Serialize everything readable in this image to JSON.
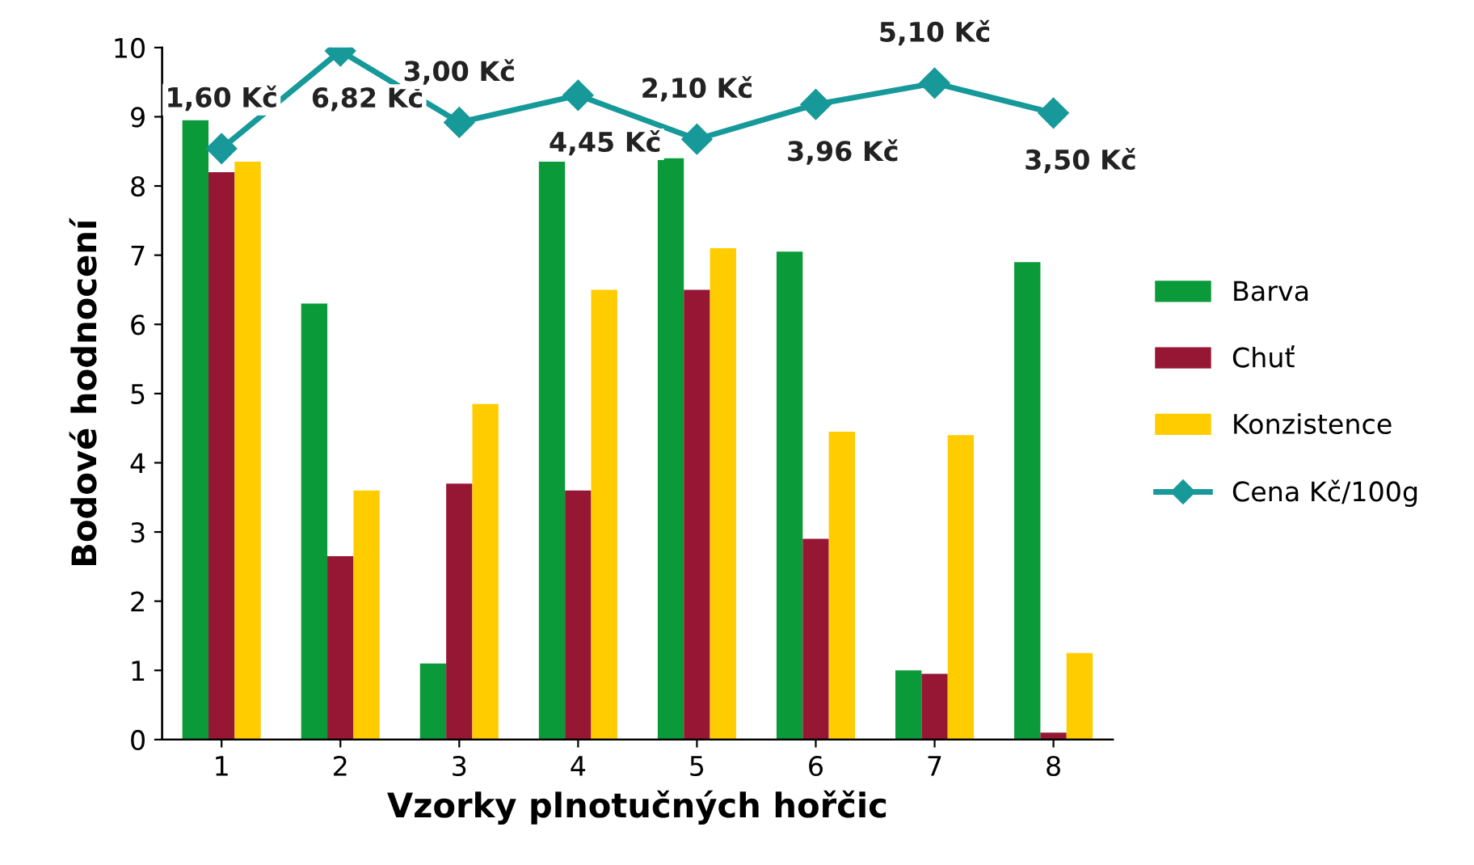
{
  "chart_data": {
    "type": "bar",
    "xlabel": "Vzorky plnotučných hořčic",
    "ylabel": "Bodové hodnocení",
    "categories": [
      "1",
      "2",
      "3",
      "4",
      "5",
      "6",
      "7",
      "8"
    ],
    "ylim": [
      0,
      10
    ],
    "yticks": [
      0,
      1,
      2,
      3,
      4,
      5,
      6,
      7,
      8,
      9,
      10
    ],
    "y2lim": [
      -30,
      7
    ],
    "grid": false,
    "legend": "right",
    "marker": "diamond",
    "line_style": "solid",
    "series": [
      {
        "name": "Barva",
        "color": "#0a9a3a",
        "values": [
          8.95,
          6.3,
          1.1,
          8.35,
          8.4,
          7.05,
          1.0,
          6.9
        ]
      },
      {
        "name": "Chuť",
        "color": "#961734",
        "values": [
          8.2,
          2.65,
          3.7,
          3.6,
          6.5,
          2.9,
          0.95,
          0.1
        ]
      },
      {
        "name": "Konzistence",
        "color": "#ffcc00",
        "values": [
          8.35,
          3.6,
          4.85,
          6.5,
          7.1,
          4.45,
          4.4,
          1.25
        ]
      },
      {
        "name": "Cena Kč/100g",
        "type": "line",
        "axis": "y2",
        "color": "#17999a",
        "values": [
          1.6,
          6.82,
          3.0,
          4.45,
          2.1,
          3.96,
          5.1,
          3.5
        ],
        "value_labels": [
          "1,60 Kč",
          "6,82 Kč",
          "3,00 Kč",
          "4,45 Kč",
          "2,10 Kč",
          "3,96 Kč",
          "5,10 Kč",
          "3,50 Kč"
        ]
      }
    ]
  }
}
